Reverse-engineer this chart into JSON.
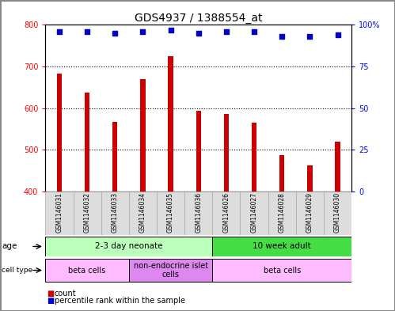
{
  "title": "GDS4937 / 1388554_at",
  "samples": [
    "GSM1146031",
    "GSM1146032",
    "GSM1146033",
    "GSM1146034",
    "GSM1146035",
    "GSM1146036",
    "GSM1146026",
    "GSM1146027",
    "GSM1146028",
    "GSM1146029",
    "GSM1146030"
  ],
  "counts": [
    682,
    637,
    566,
    670,
    725,
    593,
    585,
    565,
    487,
    462,
    519
  ],
  "percentiles": [
    96,
    96,
    95,
    96,
    97,
    95,
    96,
    96,
    93,
    93,
    94
  ],
  "ylim_left": [
    400,
    800
  ],
  "ylim_right": [
    0,
    100
  ],
  "yticks_left": [
    400,
    500,
    600,
    700,
    800
  ],
  "yticks_right": [
    0,
    25,
    50,
    75,
    100
  ],
  "bar_color": "#cc0000",
  "dot_color": "#0000cc",
  "bar_width": 0.18,
  "age_groups": [
    {
      "label": "2-3 day neonate",
      "start": 0,
      "end": 6,
      "color": "#bbffbb"
    },
    {
      "label": "10 week adult",
      "start": 6,
      "end": 11,
      "color": "#44dd44"
    }
  ],
  "cell_type_groups": [
    {
      "label": "beta cells",
      "start": 0,
      "end": 3,
      "color": "#ffbbff"
    },
    {
      "label": "non-endocrine islet\ncells",
      "start": 3,
      "end": 6,
      "color": "#dd88ee"
    },
    {
      "label": "beta cells",
      "start": 6,
      "end": 11,
      "color": "#ffbbff"
    }
  ],
  "tick_label_fontsize": 7,
  "title_fontsize": 10,
  "fig_border_color": "#888888"
}
